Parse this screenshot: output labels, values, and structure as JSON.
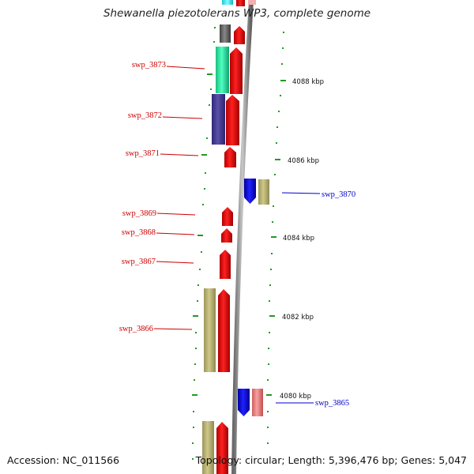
{
  "title": "Shewanella piezotolerans WP3, complete genome",
  "accession": "Accession: NC_011566",
  "topology": {
    "topology_text": "Topology: circular;",
    "length_text": "Length: 5,396,476 bp;",
    "genes_text": "Genes: 5,047"
  },
  "scale_labels": [
    "4088 kbp",
    "4086 kbp",
    "4084 kbp",
    "4082 kbp",
    "4080 kbp"
  ],
  "gene_labels": {
    "left": [
      "swp_3873",
      "swp_3872",
      "swp_3871",
      "swp_3869",
      "swp_3868",
      "swp_3867",
      "swp_3866"
    ],
    "right": [
      "swp_3870",
      "swp_3865"
    ]
  },
  "colors": {
    "label_left": "#cc0000",
    "label_right": "#0000cc",
    "gene_forward": "#e00000",
    "gene_reverse": "#0000e0",
    "cog_khaki": "#bdb676",
    "cog_teal": "#2ee8a0",
    "cog_navy": "#4b3f8f",
    "cog_grey": "#666666",
    "cog_pink": "#ee8080",
    "cog_cyan": "#40f0f0",
    "cog_lightpink": "#f4b0b0",
    "backbone": "#888888",
    "tick": "#229922"
  }
}
